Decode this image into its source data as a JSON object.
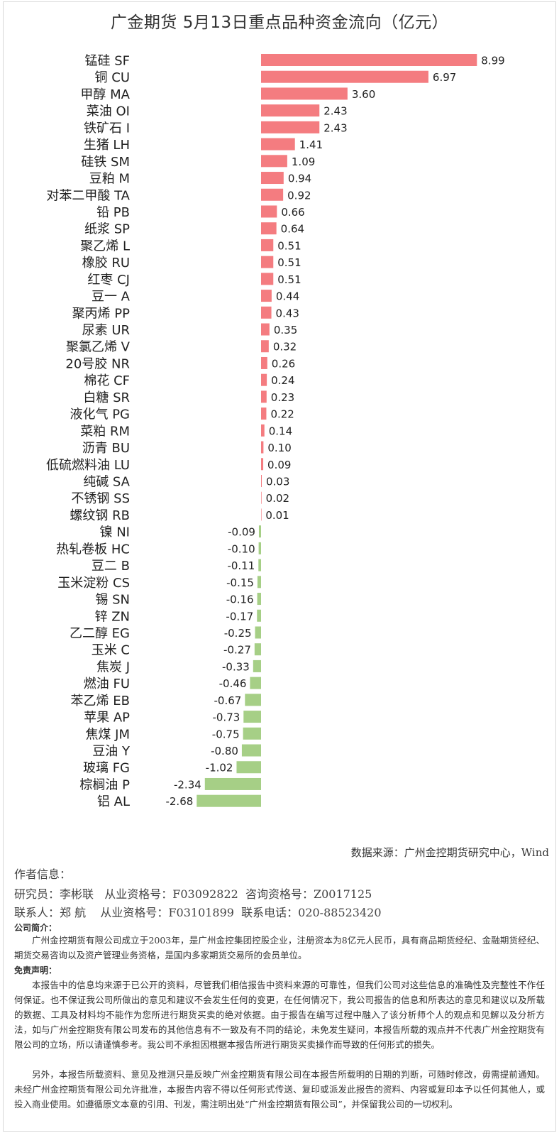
{
  "title": "广金期货 5月13日重点品种资金流向（亿元）",
  "chart_data": {
    "type": "bar",
    "orientation": "horizontal",
    "categories": [
      "锰硅 SF",
      "铜 CU",
      "甲醇 MA",
      "菜油 OI",
      "铁矿石 I",
      "生猪 LH",
      "硅铁 SM",
      "豆粕 M",
      "对苯二甲酸 TA",
      "铅 PB",
      "纸浆 SP",
      "聚乙烯 L",
      "橡胶 RU",
      "红枣 CJ",
      "豆一 A",
      "聚丙烯 PP",
      "尿素 UR",
      "聚氯乙烯 V",
      "20号胶 NR",
      "棉花 CF",
      "白糖 SR",
      "液化气 PG",
      "菜粕 RM",
      "沥青 BU",
      "低硫燃料油 LU",
      "纯碱 SA",
      "不锈钢 SS",
      "螺纹钢 RB",
      "镍 NI",
      "热轧卷板 HC",
      "豆二 B",
      "玉米淀粉 CS",
      "锡 SN",
      "锌 ZN",
      "乙二醇 EG",
      "玉米 C",
      "焦炭 J",
      "燃油 FU",
      "苯乙烯 EB",
      "苹果 AP",
      "焦煤 JM",
      "豆油 Y",
      "玻璃 FG",
      "棕榈油 P",
      "铝 AL"
    ],
    "values": [
      8.99,
      6.97,
      3.6,
      2.43,
      2.43,
      1.41,
      1.09,
      0.94,
      0.92,
      0.66,
      0.64,
      0.51,
      0.51,
      0.51,
      0.44,
      0.43,
      0.35,
      0.32,
      0.26,
      0.24,
      0.23,
      0.22,
      0.14,
      0.1,
      0.09,
      0.03,
      0.02,
      0.01,
      -0.09,
      -0.1,
      -0.11,
      -0.15,
      -0.16,
      -0.17,
      -0.25,
      -0.27,
      -0.33,
      -0.46,
      -0.67,
      -0.73,
      -0.75,
      -0.8,
      -1.02,
      -2.34,
      -2.68
    ],
    "value_labels": [
      "8.99",
      "6.97",
      "3.60",
      "2.43",
      "2.43",
      "1.41",
      "1.09",
      "0.94",
      "0.92",
      "0.66",
      "0.64",
      "0.51",
      "0.51",
      "0.51",
      "0.44",
      "0.43",
      "0.35",
      "0.32",
      "0.26",
      "0.24",
      "0.23",
      "0.22",
      "0.14",
      "0.10",
      "0.09",
      "0.03",
      "0.02",
      "0.01",
      "-0.09",
      "-0.10",
      "-0.11",
      "-0.15",
      "-0.16",
      "-0.17",
      "-0.25",
      "-0.27",
      "-0.33",
      "-0.46",
      "-0.67",
      "-0.73",
      "-0.75",
      "-0.80",
      "-1.02",
      "-2.34",
      "-2.68"
    ],
    "xlim": [
      -2.68,
      8.99
    ],
    "colors": {
      "positive": "#f47c80",
      "negative": "#a6cf86"
    },
    "grid": false,
    "legend": false
  },
  "source": "数据来源：广州金控期货研究中心，Wind",
  "author": {
    "heading": "作者信息：",
    "line1": "研究员：李彬联   从业资格号：F03092822  咨询资格号：Z0017125",
    "line2": "联系人：郑 航    从业资格号：F03101899  联系电话：020-88523420"
  },
  "company": {
    "heading": "公司简介：",
    "text": "广州金控期货有限公司成立于2003年，是广州金控集团控股企业，注册资本为8亿元人民币，具有商品期货经纪、金融期货经纪、期货交易咨询以及资产管理业务资格，是国内多家期货交易所的会员单位。"
  },
  "disclaimer": {
    "heading": "免责声明：",
    "p1": "本报告中的信息均来源于已公开的资料，尽管我们相信报告中资料来源的可靠性，但我们公司对这些信息的准确性及完整性不作任何保证。也不保证我公司所做出的意见和建议不会发生任何的变更，在任何情况下，我公司报告的信息和所表达的意见和建议以及所载的数据、工具及材料均不能作为您所进行期货买卖的绝对依据。由于报告在编写过程中融入了该分析师个人的观点和见解以及分析方法，如与广州金控期货有限公司发布的其他信息有不一致及有不同的结论，未免发生疑问，本报告所载的观点并不代表广州金控期货有限公司的立场，所以请谨慎参考。我公司不承担因根据本报告所进行期货买卖操作而导致的任何形式的损失。",
    "p2": "另外，本报告所载资料、意见及推测只是反映广州金控期货有限公司在本报告所载明的日期的判断，可随时修改，毋需提前通知。未经广州金控期货有限公司允许批准，本报告内容不得以任何形式传送、复印或派发此报告的资料、内容或复印本予以任何其他人，或投入商业使用。如遵循原文本意的引用、刊发，需注明出处“广州金控期货有限公司”，并保留我公司的一切权利。"
  }
}
